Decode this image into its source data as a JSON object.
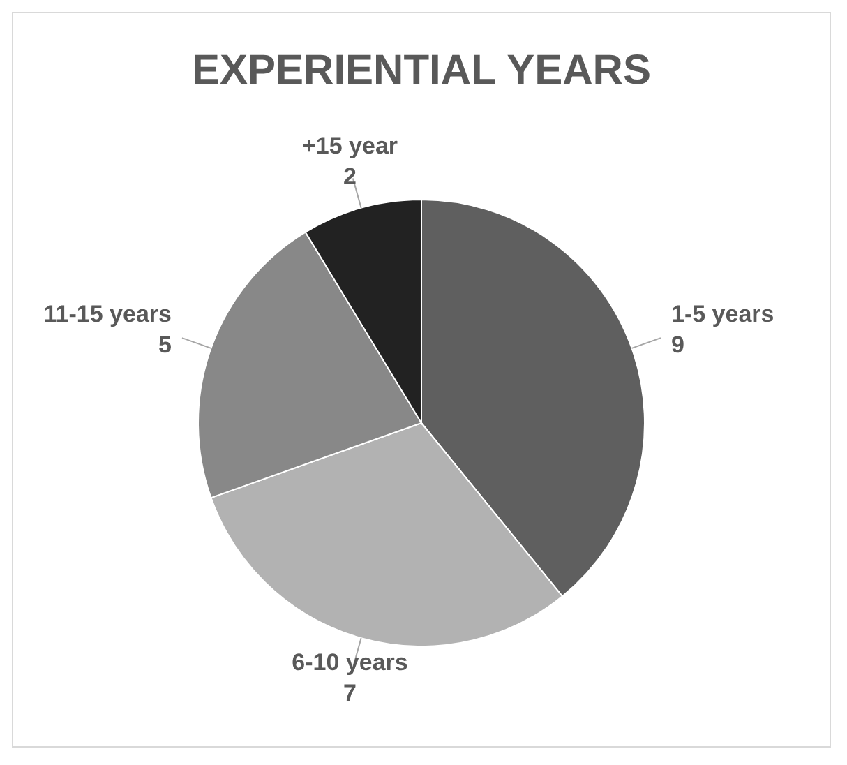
{
  "chart_data": {
    "type": "pie",
    "title": "EXPERIENTIAL YEARS",
    "categories": [
      "1-5 years",
      "6-10 years",
      "11-15 years",
      "+15 year"
    ],
    "values": [
      9,
      7,
      5,
      2
    ],
    "colors": [
      "#5f5f5f",
      "#b2b2b2",
      "#888888",
      "#222222"
    ],
    "data_labels": true
  }
}
